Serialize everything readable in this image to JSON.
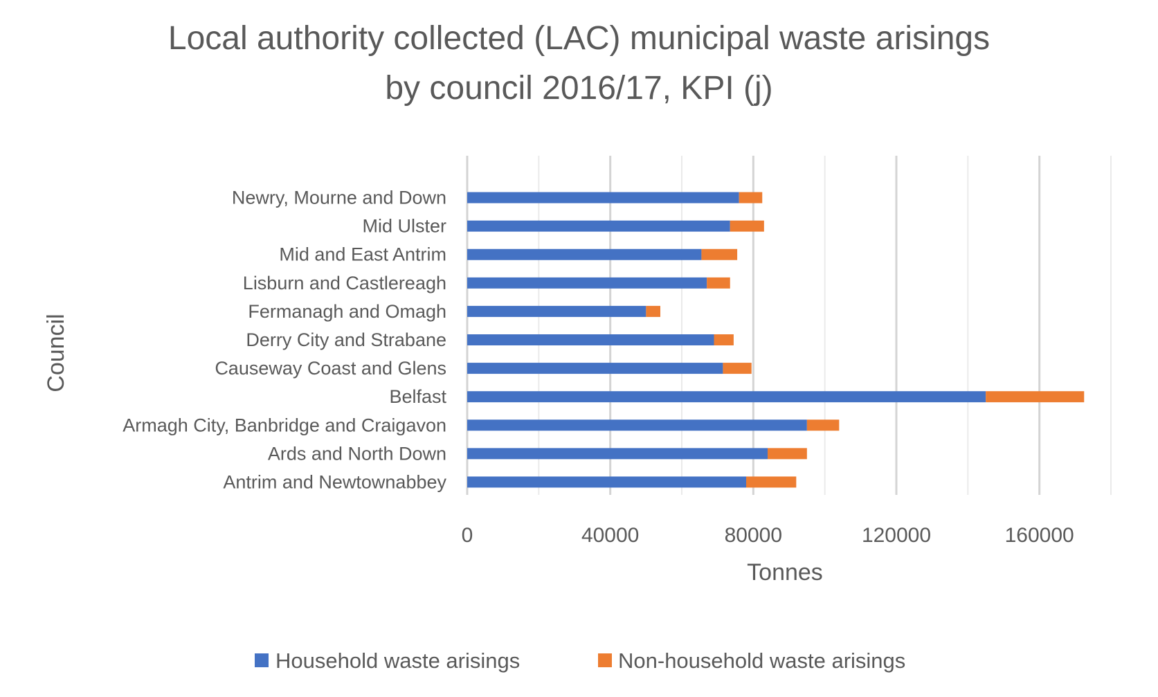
{
  "chart_data": {
    "type": "bar",
    "orientation": "horizontal",
    "stacked": true,
    "title": "Local authority collected (LAC) municipal waste arisings by council 2016/17, KPI (j)",
    "title_lines": [
      "Local authority collected (LAC) municipal waste arisings",
      "by council 2016/17, KPI (j)"
    ],
    "xlabel": "Tonnes",
    "ylabel": "Council",
    "xlim": [
      0,
      180000
    ],
    "xticks": [
      0,
      40000,
      80000,
      120000,
      160000
    ],
    "grid": true,
    "legend_position": "bottom",
    "categories": [
      "Antrim and Newtownabbey",
      "Ards and North Down",
      "Armagh City, Banbridge and Craigavon",
      "Belfast",
      "Causeway Coast and Glens",
      "Derry City and Strabane",
      "Fermanagh and Omagh",
      "Lisburn and Castlereagh",
      "Mid and East Antrim",
      "Mid Ulster",
      "Newry, Mourne and Down"
    ],
    "series": [
      {
        "name": "Household waste arisings",
        "color": "#4472C4",
        "values": [
          78000,
          84000,
          95000,
          145000,
          71500,
          69000,
          50000,
          67000,
          65500,
          73500,
          76000
        ]
      },
      {
        "name": "Non-household waste arisings",
        "color": "#ED7D31",
        "values": [
          14000,
          11000,
          9000,
          27500,
          8000,
          5500,
          4000,
          6500,
          10000,
          9500,
          6500
        ]
      }
    ]
  }
}
